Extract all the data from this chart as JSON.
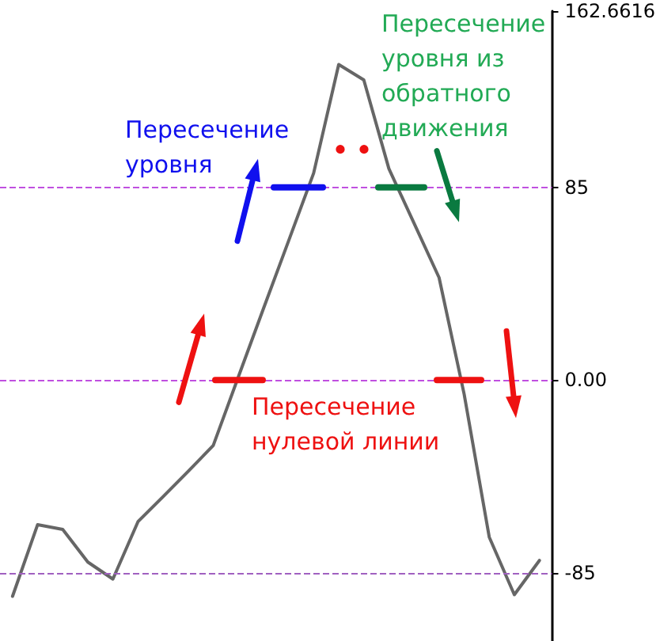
{
  "chart_data": {
    "type": "line",
    "categories": [
      null,
      null,
      null,
      null,
      null,
      null,
      null,
      null,
      null,
      null,
      null,
      null,
      null,
      null,
      null,
      null,
      null,
      null,
      null,
      null,
      null,
      null
    ],
    "series": [
      {
        "color": "#666666",
        "values": [
          -95.3,
          -63.7,
          -65.8,
          -80.2,
          -87.7,
          -62.4,
          -51.4,
          -40.2,
          -28.8,
          1.4,
          31.5,
          61.3,
          91.2,
          139.1,
          132.3,
          93.2,
          69.2,
          45.2,
          -6.2,
          -69.2,
          -94.6,
          -79.5
        ]
      }
    ],
    "ylim": [
      -115,
      162.6616
    ],
    "yticks": [
      162.6616,
      85,
      {
        "value": 0,
        "label": "0.00"
      },
      -85
    ],
    "ref_lines": [
      {
        "axis": "y",
        "value": 85,
        "color": "#c050e0",
        "line_style": "dashed"
      },
      {
        "axis": "y",
        "value": 0,
        "color": "#c050e0",
        "line_style": "dashed"
      },
      {
        "axis": "y",
        "value": -85,
        "color": "#a060c0",
        "line_style": "dashed"
      }
    ],
    "annotations": [
      "Пересечение уровня",
      "Пересечение уровня из обратного движения",
      "Пересечение нулевой линии"
    ],
    "marker": "none",
    "line_style": "solid",
    "tick_labels": "y"
  }
}
